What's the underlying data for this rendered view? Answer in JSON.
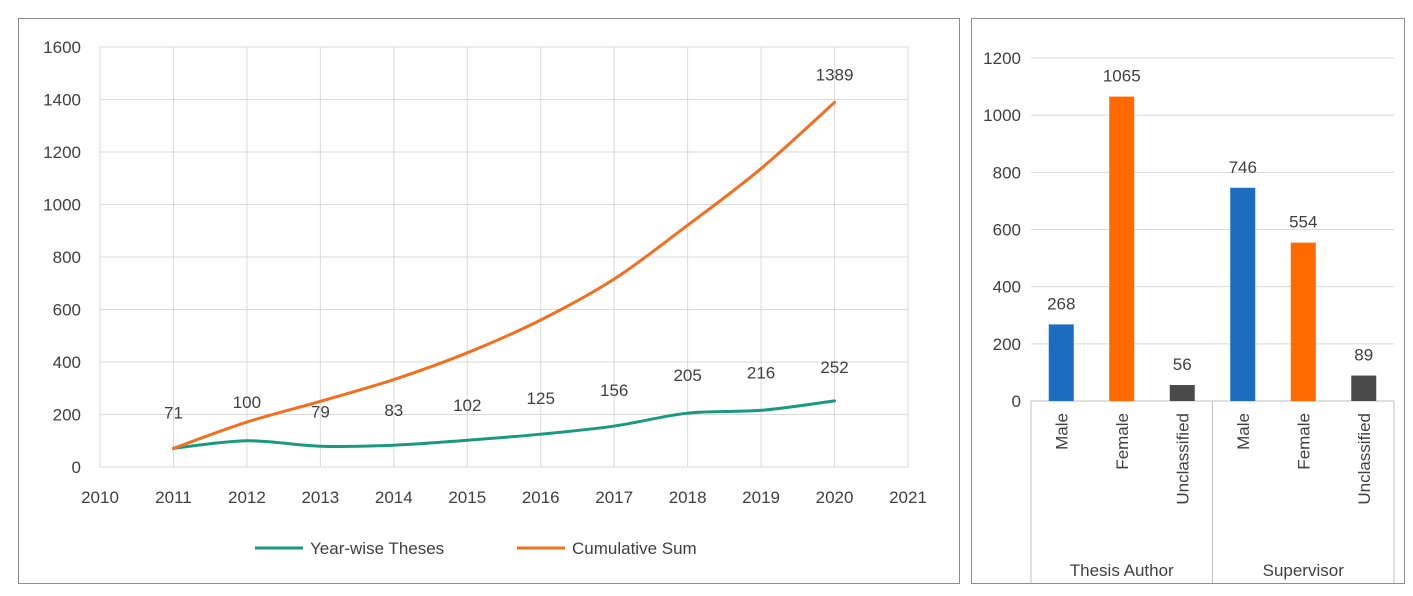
{
  "chart_data": [
    {
      "type": "line",
      "x": [
        2011,
        2012,
        2013,
        2014,
        2015,
        2016,
        2017,
        2018,
        2019,
        2020
      ],
      "series": [
        {
          "name": "Year-wise Theses",
          "color": "#1a9980",
          "values": [
            71,
            100,
            79,
            83,
            102,
            125,
            156,
            205,
            216,
            252
          ],
          "labels": [
            "71",
            "100",
            "79",
            "83",
            "102",
            "125",
            "156",
            "205",
            "216",
            "252"
          ]
        },
        {
          "name": "Cumulative Sum",
          "color": "#f07020",
          "values": [
            71,
            171,
            250,
            333,
            435,
            560,
            716,
            921,
            1137,
            1389
          ],
          "labels": [
            "",
            "",
            "",
            "",
            "",
            "",
            "",
            "",
            "",
            "1389"
          ]
        }
      ],
      "xlim": [
        2010,
        2021
      ],
      "ylim": [
        0,
        1600
      ],
      "xticks": [
        "2010",
        "2011",
        "2012",
        "2013",
        "2014",
        "2015",
        "2016",
        "2017",
        "2018",
        "2019",
        "2020",
        "2021"
      ],
      "yticks": [
        "0",
        "200",
        "400",
        "600",
        "800",
        "1000",
        "1200",
        "1400",
        "1600"
      ],
      "title": "",
      "xlabel": "",
      "ylabel": "",
      "grid": true,
      "legend_position": "bottom"
    },
    {
      "type": "bar",
      "groups": [
        {
          "name": "Thesis Author",
          "categories": [
            "Male",
            "Female",
            "Unclassified"
          ],
          "values": [
            268,
            1065,
            56
          ],
          "labels": [
            "268",
            "1065",
            "56"
          ],
          "colors": [
            "#1c6cc0",
            "#ff6a00",
            "#4a4a4a"
          ]
        },
        {
          "name": "Supervisor",
          "categories": [
            "Male",
            "Female",
            "Unclassified"
          ],
          "values": [
            746,
            554,
            89
          ],
          "labels": [
            "746",
            "554",
            "89"
          ],
          "colors": [
            "#1c6cc0",
            "#ff6a00",
            "#4a4a4a"
          ]
        }
      ],
      "ylim": [
        0,
        1200
      ],
      "yticks": [
        "0",
        "200",
        "400",
        "600",
        "800",
        "1000",
        "1200"
      ],
      "title": "",
      "xlabel": "",
      "ylabel": "",
      "grid": true
    }
  ]
}
